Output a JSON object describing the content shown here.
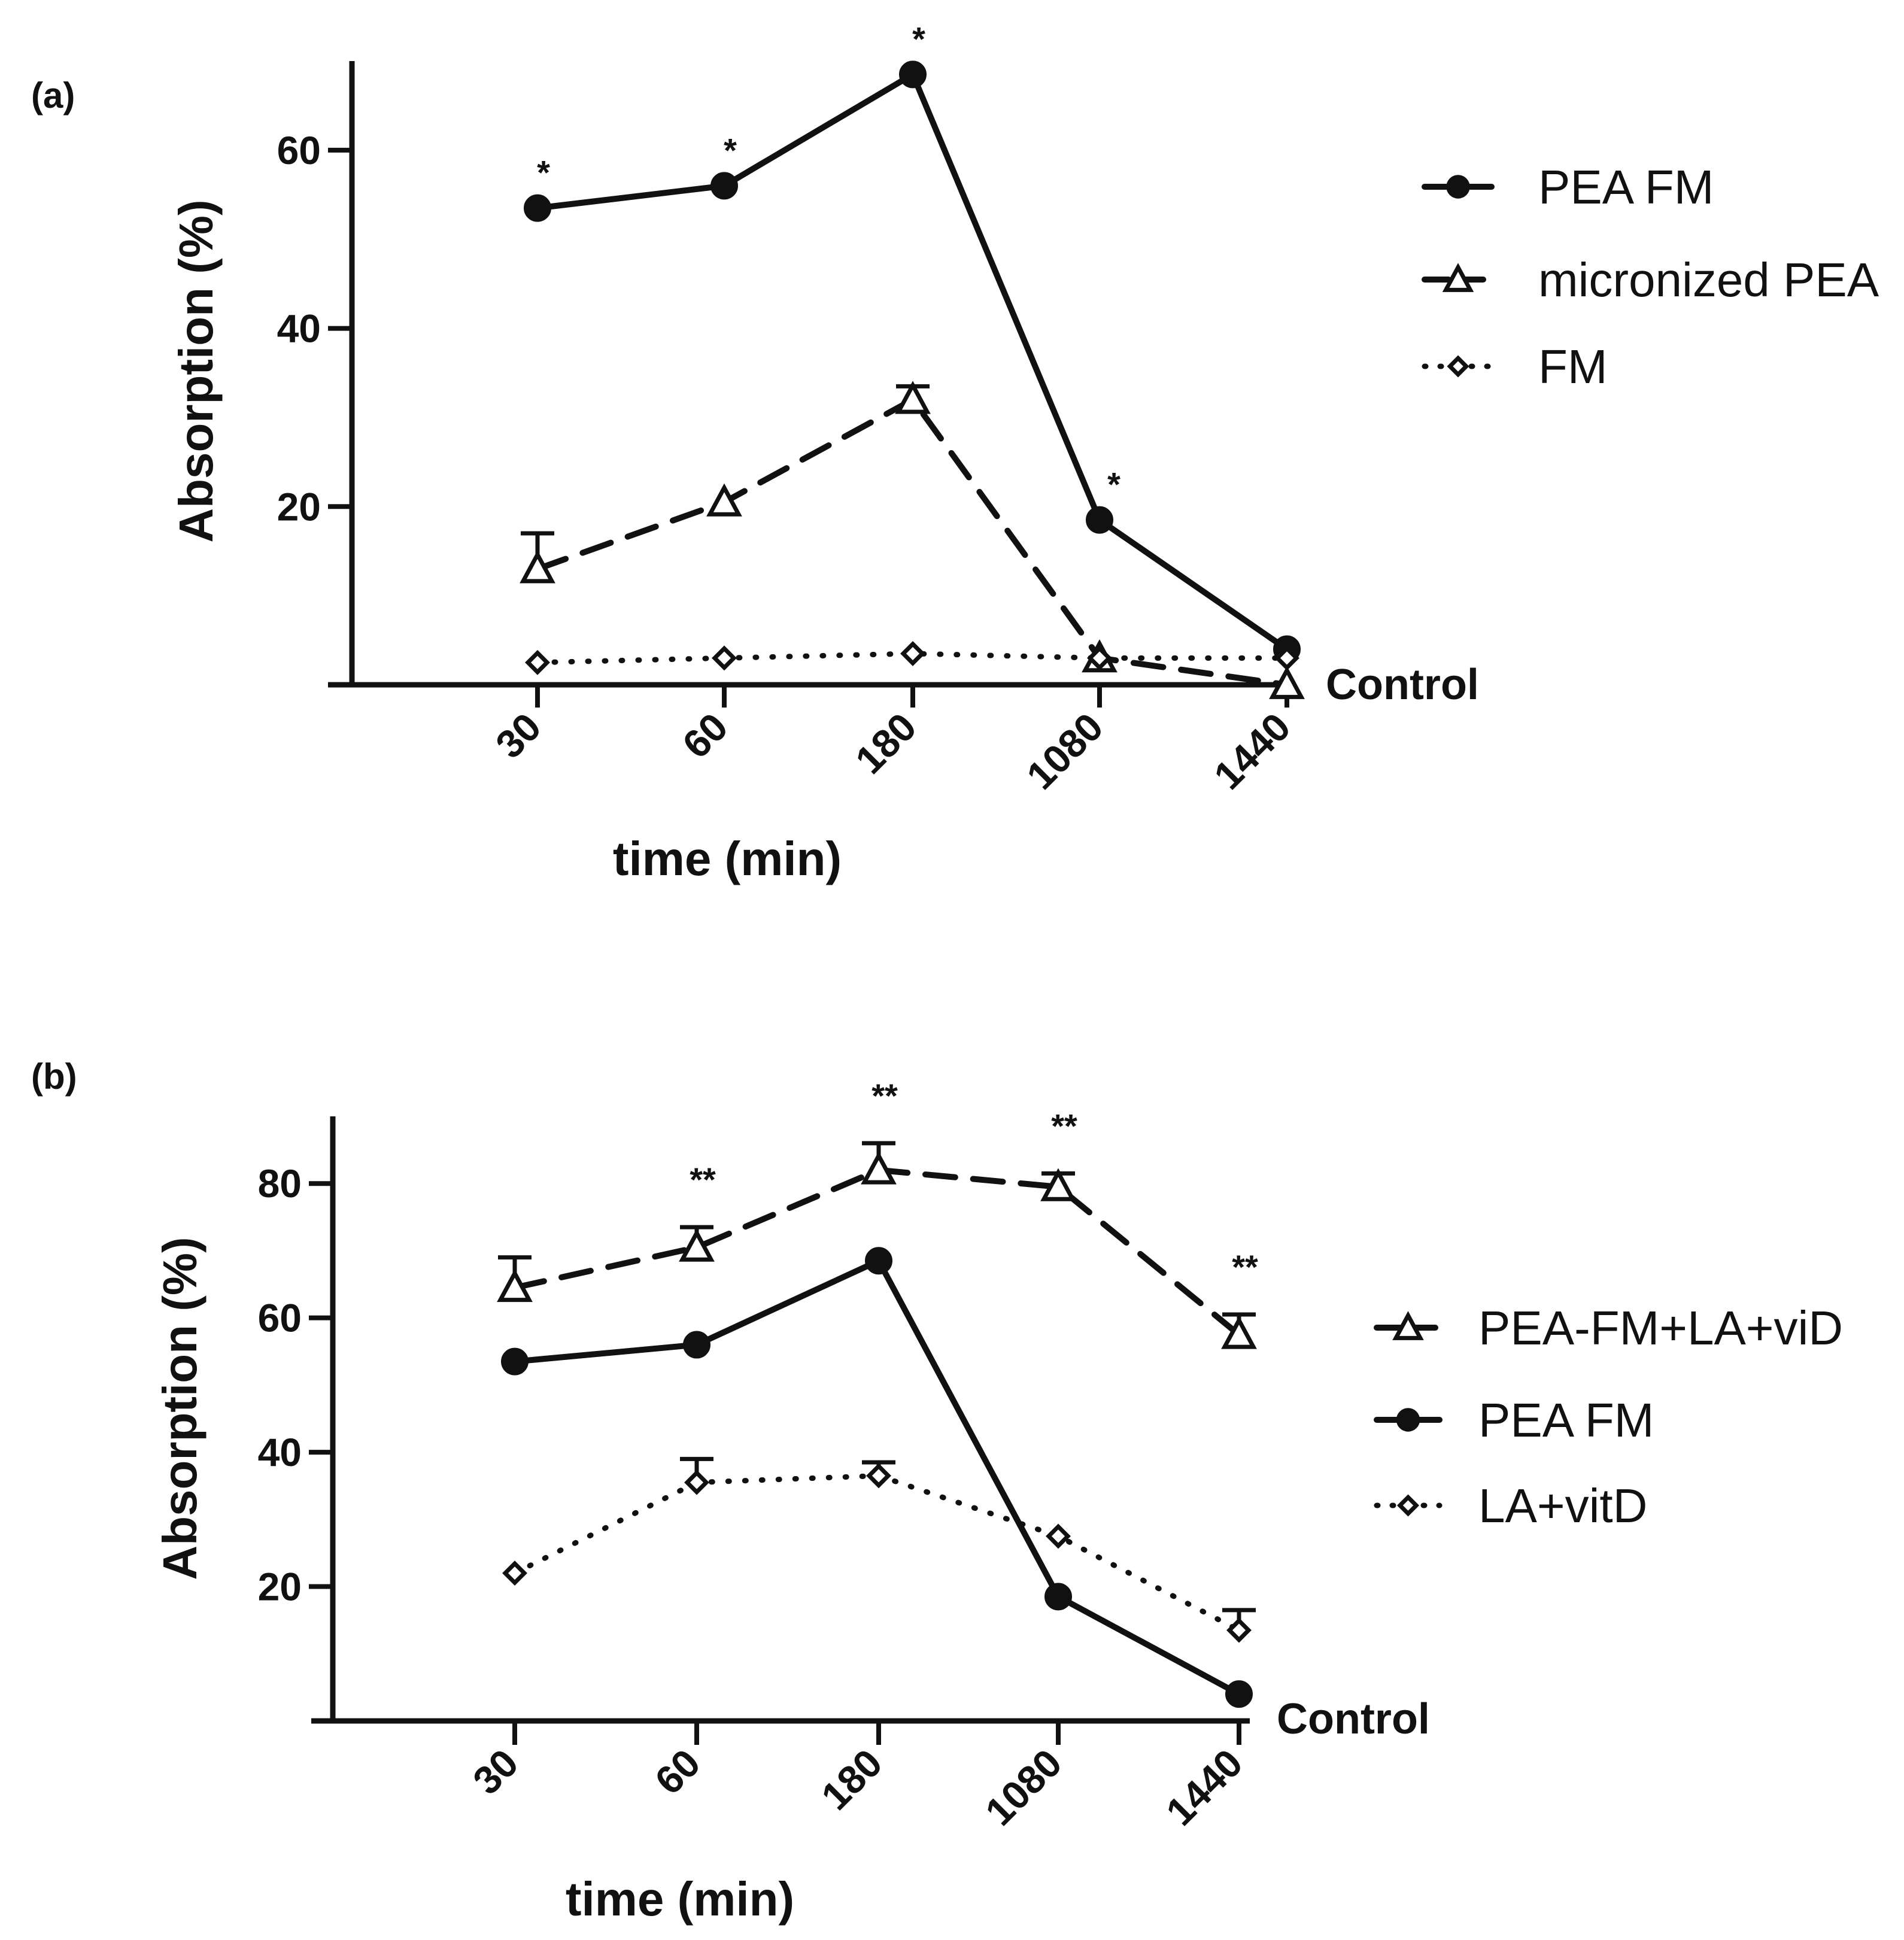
{
  "chart_data": [
    {
      "panel": "(a)",
      "type": "line",
      "xlabel": "time (min)",
      "ylabel": "Absorption (%)",
      "categories": [
        "30",
        "60",
        "180",
        "1080",
        "1440"
      ],
      "yticks": [
        20,
        40,
        60
      ],
      "ylim": [
        0,
        70
      ],
      "baseline_label": "Control",
      "legend_position": "right",
      "series": [
        {
          "name": "PEA FM",
          "style": "solid",
          "marker": "circle",
          "values": [
            53.5,
            56,
            68.5,
            18.5,
            4
          ],
          "errors": [
            0,
            0,
            0,
            0,
            0
          ],
          "sig": [
            "*",
            "*",
            "*",
            "*",
            ""
          ]
        },
        {
          "name": "micronized PEA",
          "style": "dashed",
          "marker": "triangle",
          "values": [
            13,
            20.5,
            32,
            3,
            0
          ],
          "errors": [
            4,
            0,
            1.5,
            0,
            0
          ],
          "sig": [
            "",
            "",
            "",
            "",
            ""
          ]
        },
        {
          "name": "FM",
          "style": "dotted",
          "marker": "diamond",
          "values": [
            2.5,
            3,
            3.5,
            3,
            3
          ],
          "errors": [
            0,
            0,
            0,
            0,
            0
          ],
          "sig": [
            "",
            "",
            "",
            "",
            ""
          ]
        }
      ]
    },
    {
      "panel": "(b)",
      "type": "line",
      "xlabel": "time (min)",
      "ylabel": "Absorption (%)",
      "categories": [
        "30",
        "60",
        "180",
        "1080",
        "1440"
      ],
      "yticks": [
        20,
        40,
        60,
        80
      ],
      "ylim": [
        0,
        90
      ],
      "baseline_label": "Control",
      "legend_position": "right",
      "series": [
        {
          "name": "PEA-FM+LA+viD",
          "style": "dashed",
          "marker": "triangle",
          "values": [
            64.5,
            70.5,
            82,
            79.5,
            57.5
          ],
          "errors": [
            4.5,
            3,
            4,
            2,
            3
          ],
          "sig": [
            "",
            "**",
            "**",
            "**",
            "**"
          ]
        },
        {
          "name": "PEA FM",
          "style": "solid",
          "marker": "circle",
          "values": [
            53.5,
            56,
            68.5,
            18.5,
            4
          ],
          "errors": [
            0,
            0,
            0,
            0,
            0
          ],
          "sig": [
            "",
            "",
            "",
            "",
            ""
          ]
        },
        {
          "name": "LA+vitD",
          "style": "dotted",
          "marker": "diamond",
          "values": [
            22,
            35.5,
            36.5,
            27.5,
            13.5
          ],
          "errors": [
            0,
            3.5,
            2,
            0,
            3
          ],
          "sig": [
            "",
            "",
            "",
            "",
            ""
          ]
        }
      ]
    }
  ]
}
